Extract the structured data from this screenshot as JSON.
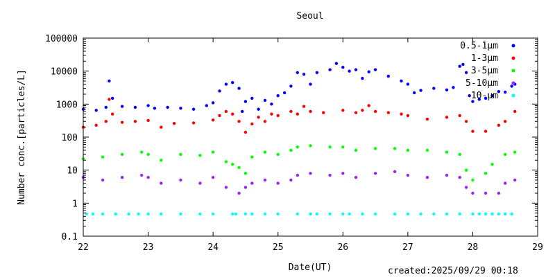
{
  "chart_data": {
    "type": "scatter",
    "title": "Seoul",
    "xlabel": "Date(UT)",
    "ylabel": "Number conc.[particles/L]",
    "xlim": [
      22,
      29
    ],
    "ylim": [
      0.1,
      100000
    ],
    "yscale": "log",
    "x_ticks": [
      "22",
      "23",
      "24",
      "25",
      "26",
      "27",
      "28",
      "29"
    ],
    "y_ticks": [
      "0.1",
      "1",
      "10",
      "100",
      "1000",
      "10000",
      "100000"
    ],
    "grid": false,
    "legend_position": "top-right",
    "series": [
      {
        "name": "0.5-1μm",
        "color": "#0000ff",
        "x": [
          22.0,
          22.2,
          22.35,
          22.4,
          22.45,
          22.6,
          22.8,
          23.0,
          23.1,
          23.3,
          23.5,
          23.7,
          23.9,
          24.0,
          24.1,
          24.2,
          24.3,
          24.4,
          24.45,
          24.5,
          24.6,
          24.7,
          24.8,
          24.9,
          25.0,
          25.1,
          25.2,
          25.3,
          25.4,
          25.5,
          25.6,
          25.8,
          25.9,
          26.0,
          26.1,
          26.2,
          26.3,
          26.4,
          26.5,
          26.7,
          26.9,
          27.0,
          27.1,
          27.2,
          27.4,
          27.6,
          27.7,
          27.8,
          27.85,
          27.9,
          27.95,
          28.0,
          28.1,
          28.2,
          28.3,
          28.4,
          28.5,
          28.6,
          28.65
        ],
        "y": [
          700,
          650,
          800,
          5000,
          1500,
          850,
          800,
          900,
          750,
          800,
          750,
          700,
          900,
          1100,
          2500,
          4000,
          4500,
          3000,
          600,
          1200,
          1500,
          700,
          1300,
          1000,
          1800,
          2200,
          3500,
          9000,
          8000,
          4000,
          9000,
          11000,
          17000,
          13000,
          10000,
          11000,
          6000,
          9500,
          11000,
          7000,
          5000,
          4000,
          2200,
          2600,
          3000,
          2700,
          3200,
          14000,
          16000,
          9000,
          1800,
          1200,
          1400,
          1500,
          1800,
          2400,
          2300,
          3500,
          4000
        ]
      },
      {
        "name": "1-3μm",
        "color": "#ff0000",
        "x": [
          22.0,
          22.2,
          22.35,
          22.4,
          22.45,
          22.6,
          22.8,
          23.0,
          23.2,
          23.4,
          23.7,
          24.0,
          24.1,
          24.2,
          24.3,
          24.4,
          24.5,
          24.6,
          24.7,
          24.8,
          24.9,
          25.0,
          25.2,
          25.3,
          25.4,
          25.5,
          25.7,
          26.0,
          26.2,
          26.3,
          26.4,
          26.5,
          26.7,
          26.9,
          27.0,
          27.3,
          27.6,
          27.8,
          27.9,
          28.0,
          28.2,
          28.4,
          28.5,
          28.65
        ],
        "y": [
          200,
          230,
          300,
          1400,
          500,
          280,
          300,
          320,
          200,
          260,
          270,
          330,
          450,
          600,
          500,
          300,
          140,
          250,
          400,
          300,
          500,
          450,
          600,
          500,
          850,
          600,
          550,
          650,
          550,
          650,
          900,
          600,
          550,
          500,
          450,
          350,
          400,
          450,
          300,
          150,
          150,
          230,
          300,
          600
        ]
      },
      {
        "name": "3-5μm",
        "color": "#00ff00",
        "x": [
          22.0,
          22.3,
          22.6,
          22.9,
          23.0,
          23.2,
          23.5,
          23.8,
          24.0,
          24.2,
          24.3,
          24.4,
          24.5,
          24.6,
          24.8,
          25.0,
          25.2,
          25.3,
          25.5,
          25.8,
          26.0,
          26.2,
          26.5,
          26.8,
          27.0,
          27.3,
          27.6,
          27.8,
          27.9,
          28.0,
          28.2,
          28.3,
          28.5,
          28.65
        ],
        "y": [
          22,
          25,
          30,
          35,
          30,
          20,
          30,
          28,
          35,
          18,
          15,
          12,
          8,
          25,
          35,
          30,
          40,
          50,
          55,
          50,
          50,
          40,
          45,
          45,
          40,
          40,
          35,
          30,
          10,
          5,
          8,
          15,
          30,
          35
        ]
      },
      {
        "name": "5-10μm",
        "color": "#a020f0",
        "x": [
          22.0,
          22.3,
          22.6,
          22.9,
          23.0,
          23.2,
          23.5,
          23.8,
          24.0,
          24.2,
          24.4,
          24.5,
          24.6,
          24.8,
          25.0,
          25.2,
          25.3,
          25.5,
          25.8,
          26.0,
          26.2,
          26.5,
          26.8,
          27.0,
          27.3,
          27.6,
          27.8,
          27.9,
          28.0,
          28.2,
          28.4,
          28.5,
          28.65
        ],
        "y": [
          6,
          5,
          6,
          7,
          6,
          4,
          5,
          4,
          6,
          3,
          2,
          3,
          4,
          5,
          4,
          5,
          7,
          8,
          7,
          8,
          6,
          8,
          9,
          7,
          6,
          7,
          6,
          3,
          2,
          2,
          2,
          4,
          5
        ]
      },
      {
        "name": "10-μm",
        "color": "#00ffff",
        "x": [
          22.05,
          22.15,
          22.3,
          22.5,
          22.7,
          22.85,
          23.0,
          23.2,
          23.5,
          23.8,
          24.0,
          24.3,
          24.35,
          24.5,
          24.6,
          24.8,
          25.0,
          25.3,
          25.5,
          25.6,
          25.8,
          26.0,
          26.1,
          26.3,
          26.5,
          26.8,
          27.0,
          27.2,
          27.4,
          27.6,
          27.8,
          28.0,
          28.1,
          28.2,
          28.3,
          28.4,
          28.5,
          28.6
        ],
        "y": [
          0.47,
          0.47,
          0.47,
          0.47,
          0.47,
          0.47,
          0.47,
          0.47,
          0.47,
          0.47,
          0.47,
          0.47,
          0.47,
          0.47,
          0.47,
          0.47,
          0.47,
          0.47,
          0.47,
          0.47,
          0.47,
          0.47,
          0.47,
          0.47,
          0.47,
          0.47,
          0.47,
          0.47,
          0.47,
          0.47,
          0.47,
          0.47,
          0.47,
          0.47,
          0.47,
          0.47,
          0.47,
          0.47
        ]
      }
    ]
  },
  "footer": {
    "created": "created:2025/09/29 00:18"
  }
}
